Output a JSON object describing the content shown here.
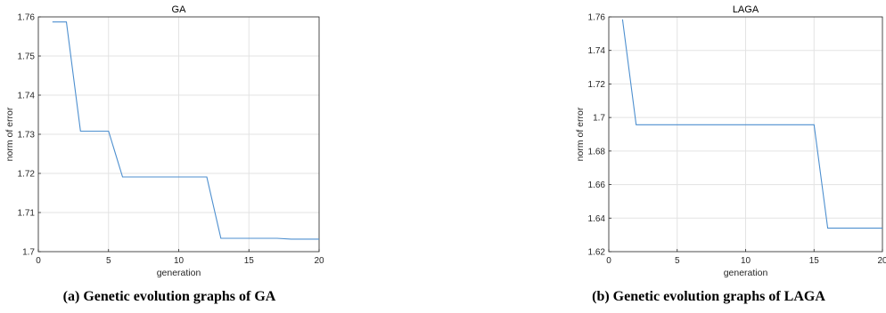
{
  "chart_data": [
    {
      "type": "line",
      "title": "GA",
      "xlabel": "generation",
      "ylabel": "norm of error",
      "caption": "(a) Genetic evolution graphs of GA",
      "xlim": [
        0,
        20
      ],
      "ylim": [
        1.7,
        1.76
      ],
      "xticks": [
        0,
        5,
        10,
        15,
        20
      ],
      "yticks": [
        1.7,
        1.71,
        1.72,
        1.73,
        1.74,
        1.75,
        1.76
      ],
      "grid": true,
      "line_color": "#4d8fcf",
      "series": [
        {
          "x": [
            1,
            2,
            3,
            4,
            5,
            6,
            7,
            8,
            9,
            10,
            11,
            12,
            13,
            14,
            15,
            16,
            17,
            18,
            19,
            20
          ],
          "values": [
            1.7587,
            1.7587,
            1.7308,
            1.7308,
            1.7308,
            1.7191,
            1.7191,
            1.7191,
            1.7191,
            1.7191,
            1.7191,
            1.7191,
            1.7034,
            1.7034,
            1.7034,
            1.7034,
            1.7034,
            1.7032,
            1.7032,
            1.7032
          ]
        }
      ]
    },
    {
      "type": "line",
      "title": "LAGA",
      "xlabel": "generation",
      "ylabel": "norm of error",
      "caption": "(b) Genetic evolution graphs of LAGA",
      "xlim": [
        0,
        20
      ],
      "ylim": [
        1.62,
        1.76
      ],
      "xticks": [
        0,
        5,
        10,
        15,
        20
      ],
      "yticks": [
        1.62,
        1.64,
        1.66,
        1.68,
        1.7,
        1.72,
        1.74,
        1.76
      ],
      "grid": true,
      "line_color": "#4d8fcf",
      "series": [
        {
          "x": [
            1,
            2,
            3,
            4,
            5,
            6,
            7,
            8,
            9,
            10,
            11,
            12,
            13,
            14,
            15,
            16,
            17,
            18,
            19,
            20
          ],
          "values": [
            1.7585,
            1.6957,
            1.6957,
            1.6957,
            1.6957,
            1.6957,
            1.6957,
            1.6957,
            1.6957,
            1.6957,
            1.6957,
            1.6957,
            1.6957,
            1.6957,
            1.6957,
            1.634,
            1.634,
            1.634,
            1.634,
            1.634
          ]
        }
      ]
    }
  ]
}
